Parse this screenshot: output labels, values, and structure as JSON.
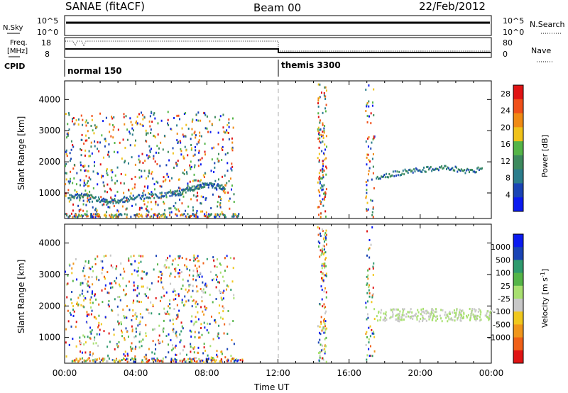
{
  "header": {
    "station": "SANAE (fitACF)",
    "beam": "Beam 00",
    "date": "22/Feb/2012"
  },
  "noise_panel": {
    "left_label": "N.Sky",
    "left_ticks": [
      "10^5",
      "10^0"
    ],
    "right_label": "N.Search",
    "right_ticks": [
      "10^5",
      "10^0"
    ]
  },
  "freq_panel": {
    "left_label_1": "Freq.",
    "left_label_2": "[MHz]",
    "left_ticks": [
      "18",
      "8"
    ],
    "right_label": "Nave",
    "right_ticks": [
      "80",
      "0"
    ]
  },
  "cpid": {
    "label": "CPID",
    "segments": [
      {
        "name": "normal 150",
        "start_hour": 0,
        "end_hour": 12
      },
      {
        "name": "themis 3300",
        "start_hour": 12,
        "end_hour": 24
      }
    ]
  },
  "colors": {
    "power_scale": [
      "#0b1bf0",
      "#1a44b5",
      "#2b7d8c",
      "#3d8a5e",
      "#55b548",
      "#f0c21a",
      "#f08a14",
      "#f0501a",
      "#e01414"
    ],
    "velocity_scale": [
      "#e01414",
      "#f06018",
      "#f0961c",
      "#f0c81e",
      "#c8c8c8",
      "#a8e070",
      "#55b548",
      "#2f9a6e",
      "#1a44b5",
      "#0b1bf0"
    ]
  },
  "chart_data": [
    {
      "type": "heatmap",
      "panel": "power",
      "xlabel": "",
      "ylabel": "Slant Range [km]",
      "xlim": [
        0,
        24
      ],
      "ylim": [
        180,
        4600
      ],
      "x_ticks": [
        "00:00",
        "04:00",
        "08:00",
        "12:00",
        "16:00",
        "20:00",
        "00:00"
      ],
      "y_ticks": [
        1000,
        2000,
        3000,
        4000
      ],
      "colorbar": {
        "label": "Power [dB]",
        "ticks": [
          4,
          8,
          12,
          16,
          20,
          24,
          28
        ],
        "range": [
          0,
          30
        ]
      },
      "notes_series": [
        {
          "x": [
            0.3,
            1.0,
            1.8,
            2.5,
            3.2,
            4.0,
            5.0,
            6.0,
            6.5,
            7.0,
            7.5,
            8.0,
            8.5,
            9.0
          ],
          "y": [
            850,
            900,
            800,
            700,
            750,
            850,
            900,
            950,
            1000,
            1100,
            1200,
            1250,
            1200,
            1150
          ]
        },
        {
          "x": [
            17.5,
            18.5,
            19.5,
            20.5,
            21.5,
            22.5,
            23.5
          ],
          "y": [
            1500,
            1600,
            1700,
            1750,
            1800,
            1700,
            1750
          ]
        }
      ]
    },
    {
      "type": "heatmap",
      "panel": "velocity",
      "xlabel": "Time UT",
      "ylabel": "Slant Range [km]",
      "xlim": [
        0,
        24
      ],
      "ylim": [
        180,
        4600
      ],
      "x_ticks": [
        "00:00",
        "04:00",
        "08:00",
        "12:00",
        "16:00",
        "20:00",
        "00:00"
      ],
      "y_ticks": [
        1000,
        2000,
        3000,
        4000
      ],
      "colorbar": {
        "label": "Velocity [m s^-1]",
        "ticks": [
          "1000",
          "500",
          "100",
          "25",
          "-25",
          "-100",
          "-500",
          "-1000"
        ]
      }
    }
  ],
  "labels": {
    "y_axis": "Slant Range [km]",
    "x_axis": "Time UT",
    "power_cb_label": "Power [dB]",
    "velocity_cb_label": "Velocity [m s",
    "velocity_cb_sup": "-1",
    "velocity_cb_close": "]"
  }
}
